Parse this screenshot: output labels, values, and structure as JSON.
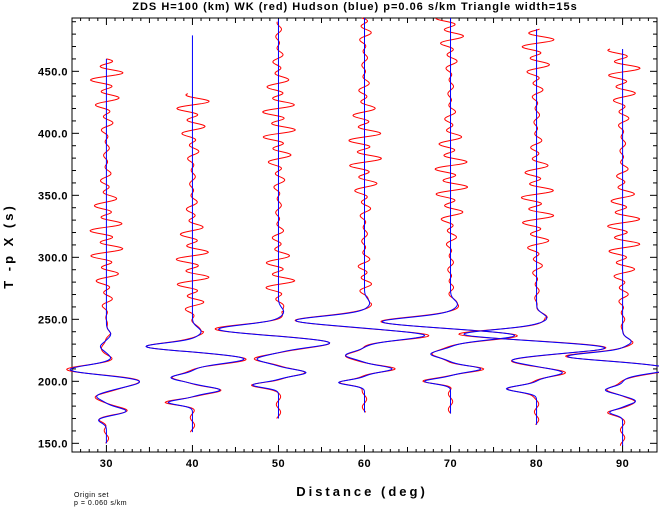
{
  "chart_data": {
    "type": "line",
    "title": "ZDS H=100 (km) WK (red) Hudson (blue) p=0.06 s/km Triangle width=15s",
    "xlabel": "Distance (deg)",
    "ylabel": "T -p X (s)",
    "xlim": [
      26,
      94
    ],
    "ylim": [
      143,
      493
    ],
    "x_ticks": [
      30,
      40,
      50,
      60,
      70,
      80,
      90
    ],
    "x_tick_labels": [
      "30",
      "40",
      "50",
      "60",
      "70",
      "80",
      "90"
    ],
    "y_ticks": [
      150,
      200,
      250,
      300,
      350,
      400,
      450
    ],
    "y_tick_labels": [
      "150.0",
      "200.0",
      "250.0",
      "300.0",
      "350.0",
      "400.0",
      "450.0"
    ],
    "grid": false,
    "legend": "none",
    "series_colors": {
      "WK": "#ff0000",
      "Hudson": "#0000ff"
    },
    "traces": [
      {
        "distance": 30,
        "t_start": 150,
        "t_end": 460,
        "red_end": 460,
        "pulses": [
          [
            169,
            -1.0,
            3.5
          ],
          [
            176,
            2.3,
            4
          ],
          [
            188,
            -1.2,
            4
          ],
          [
            200,
            4.0,
            6
          ],
          [
            209,
            -4.6,
            5
          ],
          [
            218,
            0.6,
            4
          ],
          [
            228,
            -0.7,
            4
          ],
          [
            238,
            0.5,
            4
          ]
        ]
      },
      {
        "distance": 40,
        "t_start": 159,
        "t_end": 479,
        "red_end": 432,
        "pulses": [
          [
            183,
            -2.8,
            3
          ],
          [
            193,
            3.2,
            3.5
          ],
          [
            203,
            -2.5,
            3.5
          ],
          [
            218,
            6.0,
            5
          ],
          [
            228,
            -5.5,
            4
          ],
          [
            240,
            1.0,
            5
          ]
        ]
      },
      {
        "distance": 50,
        "t_start": 170,
        "t_end": 492,
        "red_end": 490,
        "pulses": [
          [
            197,
            -3.0,
            3
          ],
          [
            207,
            3.2,
            3.5
          ],
          [
            218,
            -2.5,
            4
          ],
          [
            231,
            6.0,
            5
          ],
          [
            242,
            -7.0,
            5
          ],
          [
            256,
            0.6,
            5
          ]
        ]
      },
      {
        "distance": 60,
        "t_start": 175,
        "t_end": 493,
        "red_end": 493,
        "pulses": [
          [
            199,
            -3.0,
            3
          ],
          [
            210,
            3.2,
            3.5
          ],
          [
            221,
            -2.2,
            4
          ],
          [
            237,
            7.0,
            5
          ],
          [
            249,
            -8.0,
            5
          ],
          [
            263,
            0.6,
            5
          ]
        ]
      },
      {
        "distance": 70,
        "t_start": 174,
        "t_end": 493,
        "red_end": 493,
        "pulses": [
          [
            200,
            -3.0,
            3
          ],
          [
            210,
            3.5,
            3.5
          ],
          [
            222,
            -2.3,
            4
          ],
          [
            237,
            7.5,
            5
          ],
          [
            248,
            -8.0,
            5
          ],
          [
            262,
            0.8,
            5
          ]
        ]
      },
      {
        "distance": 80,
        "t_start": 165,
        "t_end": 484,
        "red_end": 484,
        "pulses": [
          [
            194,
            -3.5,
            3.5
          ],
          [
            207,
            3.0,
            4
          ],
          [
            217,
            -3.0,
            4
          ],
          [
            227,
            8.0,
            5
          ],
          [
            238,
            -8.5,
            5
          ],
          [
            251,
            1.2,
            5
          ]
        ]
      },
      {
        "distance": 90,
        "t_start": 148,
        "t_end": 468,
        "red_end": 468,
        "pulses": [
          [
            175,
            -1.5,
            3
          ],
          [
            184,
            1.5,
            3.5
          ],
          [
            193,
            -2.0,
            3.5
          ],
          [
            210,
            5.5,
            5
          ],
          [
            220,
            -6.5,
            4
          ],
          [
            232,
            1.0,
            4
          ]
        ]
      }
    ]
  },
  "footer": {
    "line1": "Origin set",
    "line2": "p = 0.060 s/km"
  }
}
